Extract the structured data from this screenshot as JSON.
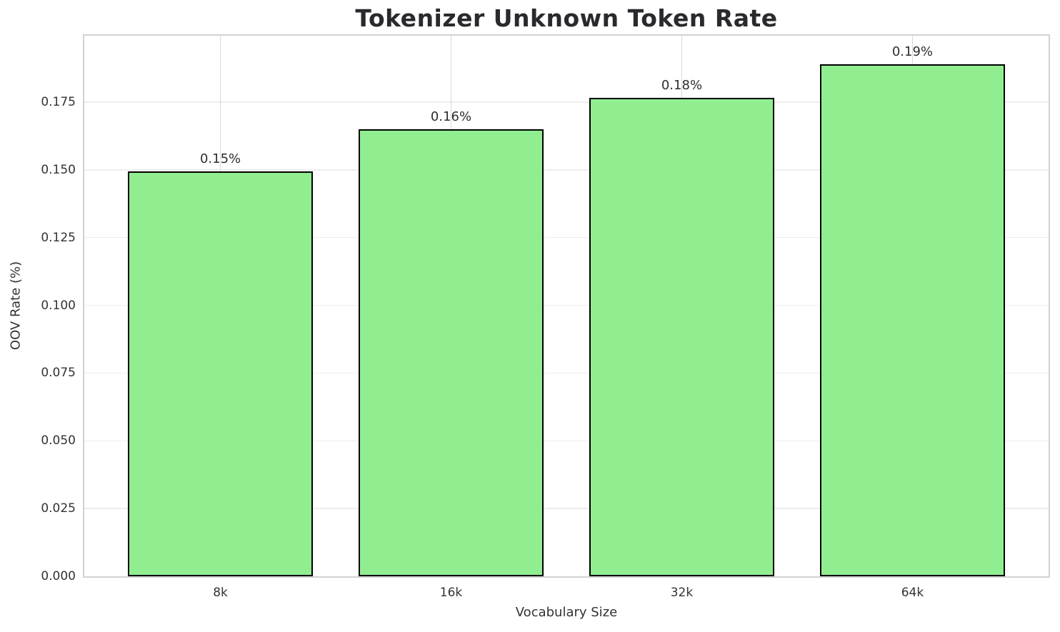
{
  "chart_data": {
    "type": "bar",
    "title": "Tokenizer Unknown Token Rate",
    "xlabel": "Vocabulary Size",
    "ylabel": "OOV Rate (%)",
    "categories": [
      "8k",
      "16k",
      "32k",
      "64k"
    ],
    "values": [
      0.1495,
      0.165,
      0.1765,
      0.189
    ],
    "bar_labels": [
      "0.15%",
      "0.16%",
      "0.18%",
      "0.19%"
    ],
    "y_tick_values": [
      0.0,
      0.025,
      0.05,
      0.075,
      0.1,
      0.125,
      0.15,
      0.175
    ],
    "y_tick_labels": [
      "0.000",
      "0.025",
      "0.050",
      "0.075",
      "0.100",
      "0.125",
      "0.150",
      "0.175"
    ],
    "ylim": [
      0,
      0.1995
    ],
    "bar_width_fraction": 0.8,
    "grid": true,
    "legend_position": "none",
    "colors": {
      "bar_fill": "#90EE90",
      "bar_edge": "#000000",
      "grid_horizontal": "#ededed",
      "grid_vertical": "#d9d9d9",
      "spine": "#d2d2d2",
      "title_text": "#2a2a2e",
      "tick_text": "#333333"
    }
  }
}
